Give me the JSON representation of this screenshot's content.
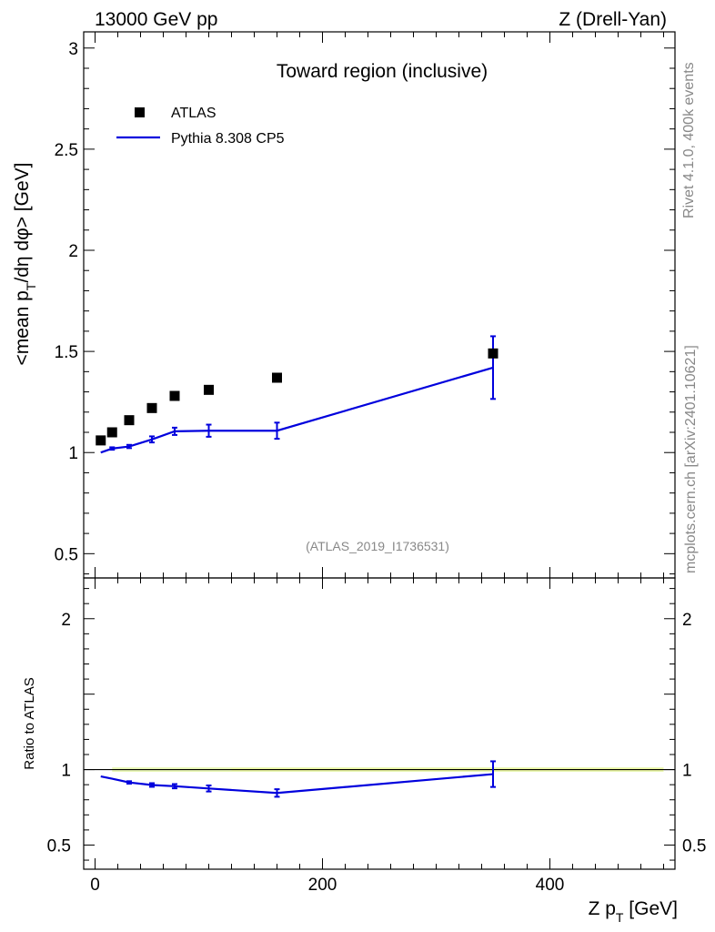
{
  "header": {
    "left": "13000 GeV pp",
    "right": "Z (Drell-Yan)"
  },
  "side": {
    "events": "Rivet 4.1.0,  400k events",
    "source": "mcplots.cern.ch [arXiv:2401.10621]"
  },
  "chart_data": [
    {
      "type": "scatter",
      "panel": "main",
      "title": "Toward region (inclusive)",
      "analysis_label": "(ATLAS_2019_I1736531)",
      "ylabel": "<mean p_T/dη dφ> [GeV]",
      "ylabel_main": "<mean p",
      "ylabel_sub": "T",
      "ylabel_rest": "/dη dφ> [GeV]",
      "xlim": [
        -10,
        510
      ],
      "ylim": [
        0.38,
        3.08
      ],
      "yticks": [
        {
          "v": 0.5,
          "label": "0.5"
        },
        {
          "v": 1,
          "label": "1"
        },
        {
          "v": 1.5,
          "label": "1.5"
        },
        {
          "v": 2,
          "label": "2"
        },
        {
          "v": 2.5,
          "label": "2.5"
        },
        {
          "v": 3,
          "label": "3"
        }
      ],
      "legend": [
        {
          "name": "ATLAS",
          "marker": "square",
          "color": "#000000"
        },
        {
          "name": "Pythia 8.308 CP5",
          "marker": "line",
          "color": "#0000dd"
        }
      ],
      "series": [
        {
          "name": "ATLAS",
          "x": [
            5,
            15,
            30,
            50,
            70,
            100,
            160,
            350
          ],
          "y": [
            1.06,
            1.1,
            1.16,
            1.22,
            1.28,
            1.31,
            1.37,
            1.49
          ]
        },
        {
          "name": "Pythia 8.308 CP5",
          "x": [
            5,
            15,
            30,
            50,
            70,
            100,
            160,
            350
          ],
          "y": [
            1.0,
            1.02,
            1.03,
            1.065,
            1.105,
            1.108,
            1.108,
            1.42
          ],
          "err": [
            0.003,
            0.006,
            0.008,
            0.015,
            0.018,
            0.03,
            0.04,
            0.155
          ]
        }
      ]
    },
    {
      "type": "line",
      "panel": "ratio",
      "ylabel": "Ratio to ATLAS",
      "xlabel": "Z p_T [GeV]",
      "xlabel_main": "Z p",
      "xlabel_sub": "T",
      "xlabel_rest": " [GeV]",
      "xlim": [
        -10,
        510
      ],
      "ylim": [
        0.34,
        2.27
      ],
      "xticks": [
        {
          "v": 0,
          "label": "0"
        },
        {
          "v": 200,
          "label": "200"
        },
        {
          "v": 400,
          "label": "400"
        }
      ],
      "yticks": [
        {
          "v": 0.5,
          "label": "0.5"
        },
        {
          "v": 1,
          "label": "1"
        },
        {
          "v": 2,
          "label": "2"
        }
      ],
      "reference": 1,
      "band_color": "#d7f07a",
      "series": [
        {
          "name": "Pythia 8.308 CP5",
          "x": [
            5,
            15,
            30,
            50,
            70,
            100,
            160,
            350
          ],
          "y": [
            0.955,
            0.94,
            0.915,
            0.898,
            0.89,
            0.875,
            0.845,
            0.97
          ],
          "err": [
            0.003,
            0.006,
            0.008,
            0.012,
            0.014,
            0.02,
            0.025,
            0.085
          ]
        }
      ]
    }
  ]
}
